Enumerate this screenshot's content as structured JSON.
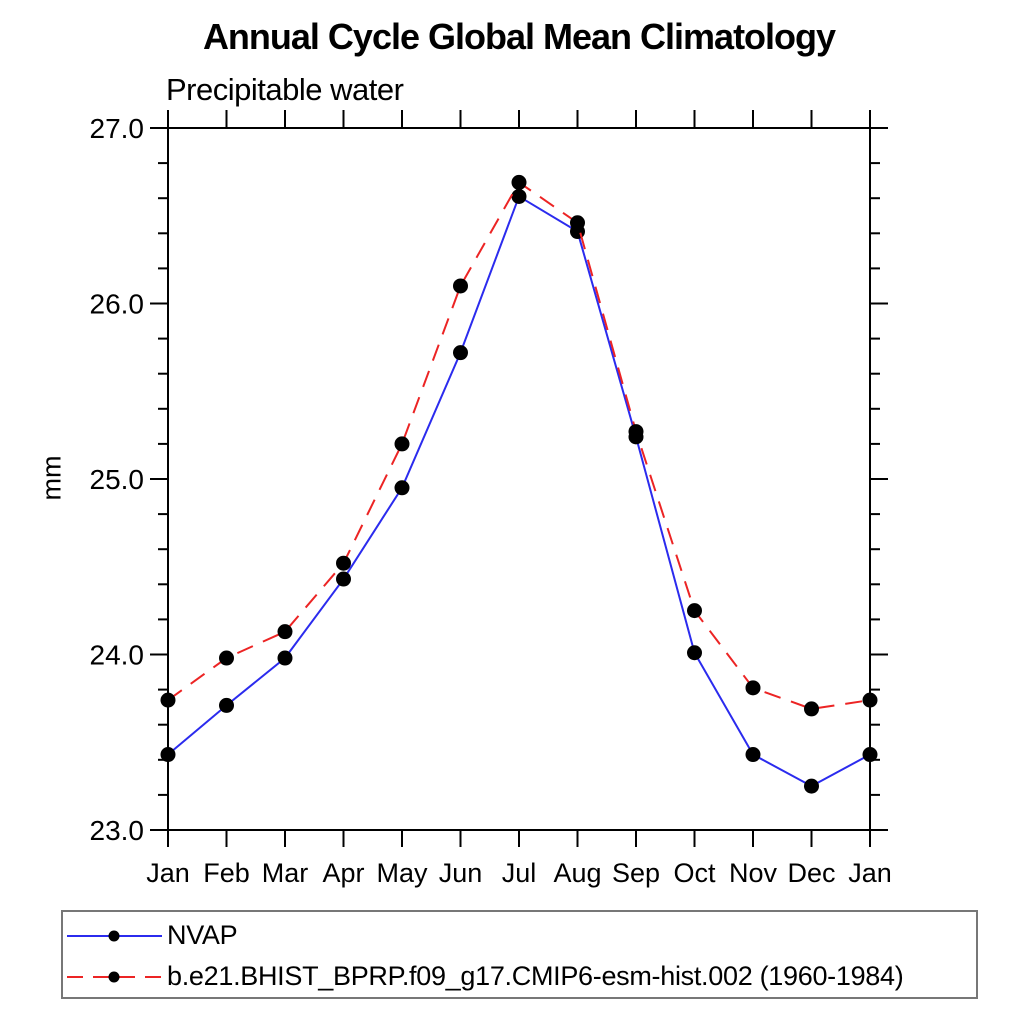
{
  "title": "Annual Cycle Global Mean Climatology",
  "subtitle": "Precipitable water",
  "ylabel": "mm",
  "chart_data": {
    "type": "line",
    "categories": [
      "Jan",
      "Feb",
      "Mar",
      "Apr",
      "May",
      "Jun",
      "Jul",
      "Aug",
      "Sep",
      "Oct",
      "Nov",
      "Dec",
      "Jan"
    ],
    "series": [
      {
        "name": "NVAP",
        "color": "#2b2bee",
        "line_style": "solid",
        "marker": "filled-circle",
        "values": [
          23.43,
          23.71,
          23.98,
          24.43,
          24.95,
          25.72,
          26.61,
          26.41,
          25.24,
          24.01,
          23.43,
          23.25,
          23.43
        ]
      },
      {
        "name": "b.e21.BHIST_BPRP.f09_g17.CMIP6-esm-hist.002 (1960-1984)",
        "color": "#ec2424",
        "line_style": "dashed",
        "marker": "filled-circle",
        "values": [
          23.74,
          23.98,
          24.13,
          24.52,
          25.2,
          26.1,
          26.69,
          26.46,
          25.27,
          24.25,
          23.81,
          23.69,
          23.74
        ]
      }
    ],
    "xlabel": "",
    "ylabel": "mm",
    "ylim": [
      23.0,
      27.0
    ],
    "yticks_major": [
      23.0,
      24.0,
      25.0,
      26.0,
      27.0
    ],
    "ytick_labels": [
      "23.0",
      "24.0",
      "25.0",
      "26.0",
      "27.0"
    ],
    "ytick_minor_step": 0.2,
    "grid": false,
    "legend_position": "bottom-left",
    "marker_color": "#000000",
    "axis_color": "#000000"
  }
}
